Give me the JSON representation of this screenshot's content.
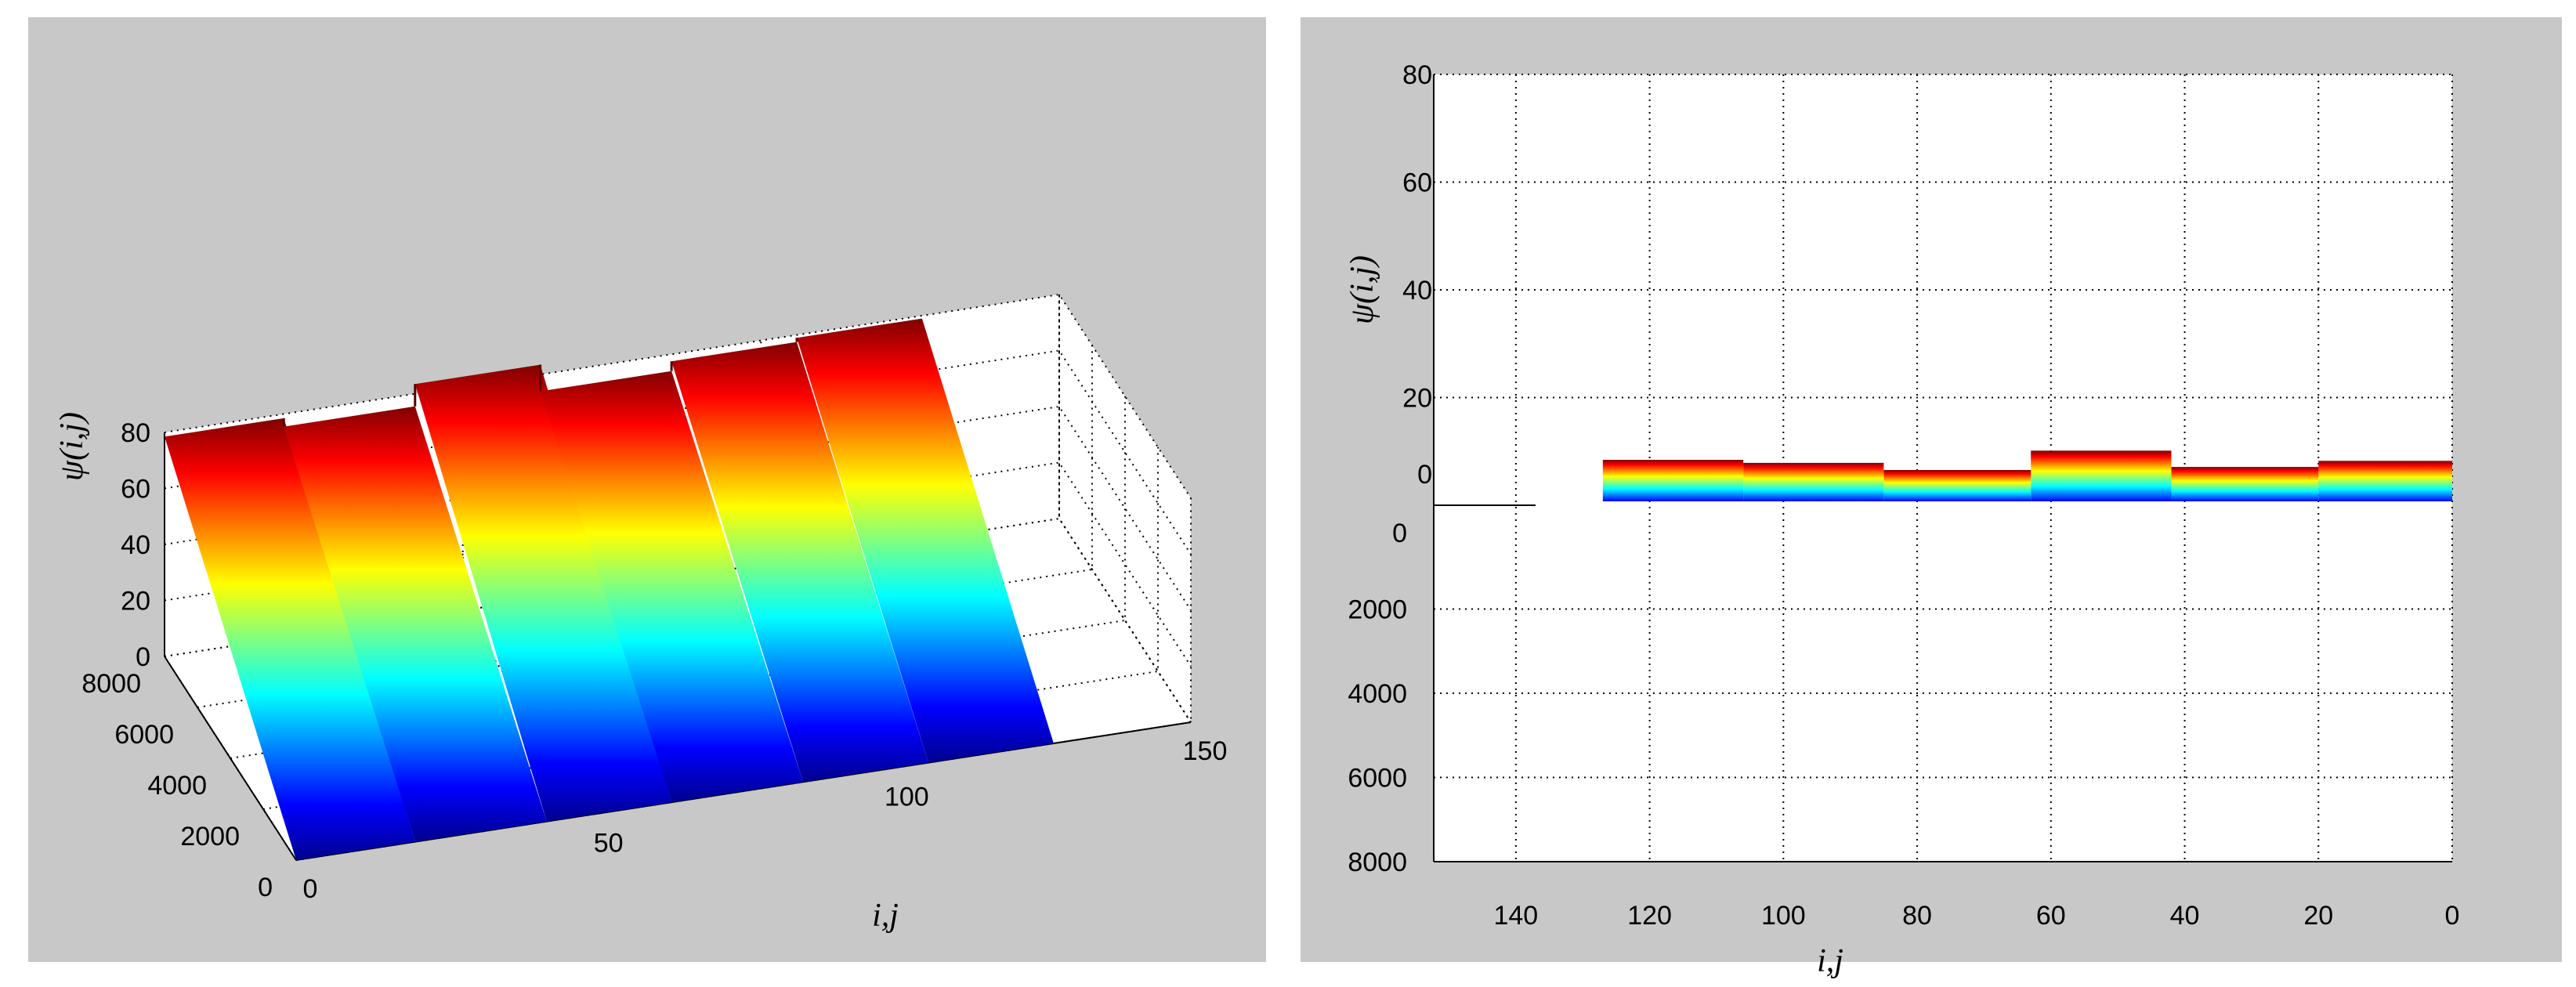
{
  "chart_data": [
    {
      "type": "surface",
      "view": "3d",
      "ylabel": "ψ(i,j)",
      "xlabel": "i,j",
      "z_ticks": [
        "0",
        "20",
        "40",
        "60",
        "80"
      ],
      "x_ticks": [
        "0",
        "50",
        "100",
        "150"
      ],
      "y_ticks": [
        "0",
        "2000",
        "4000",
        "6000",
        "8000"
      ],
      "zlim": [
        0,
        80
      ],
      "xlim": [
        0,
        150
      ],
      "ylim": [
        0,
        8000
      ],
      "colormap": "jet",
      "grid": true,
      "steps": [
        {
          "from": 0,
          "to": 20,
          "top": 78.5
        },
        {
          "from": 20,
          "to": 42,
          "top": 75.5
        },
        {
          "from": 42,
          "to": 63,
          "top": 83.5
        },
        {
          "from": 63,
          "to": 85,
          "top": 74
        },
        {
          "from": 85,
          "to": 106,
          "top": 77.5
        },
        {
          "from": 106,
          "to": 127,
          "top": 79
        }
      ]
    },
    {
      "type": "surface",
      "view": "side",
      "ylabel": "ψ(i,j)",
      "xlabel": "i,j",
      "x_ticks": [
        "140",
        "120",
        "100",
        "80",
        "60",
        "40",
        "20",
        "0"
      ],
      "z_ticks": [
        "0",
        "20",
        "40",
        "60",
        "80"
      ],
      "y_ticks": [
        "0",
        "2000",
        "4000",
        "6000",
        "8000"
      ],
      "colormap": "jet",
      "grid": true
    }
  ],
  "colors": {
    "background": "#c8c8c8",
    "axes_face": "#ffffff",
    "jet": [
      "#00008f",
      "#0000ff",
      "#0080ff",
      "#00ffff",
      "#80ff80",
      "#ffff00",
      "#ff8000",
      "#ff0000",
      "#800000"
    ]
  }
}
